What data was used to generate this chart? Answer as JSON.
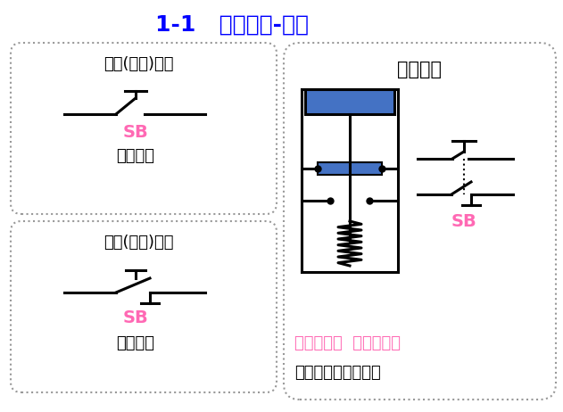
{
  "title": "1-1   控制器件-按钮",
  "title_color": "#0000FF",
  "title_fontsize": 18,
  "bg_color": "#FFFFFF",
  "box_border_color": "#999999",
  "black": "#000000",
  "pink": "#FF69B4",
  "blue_rect": "#4472C4",
  "lw": 2.2,
  "box1_title": "常开(动合)按钮",
  "box2_title": "常闭(动断)按钮",
  "box3_title": "复合按钮",
  "sb_label": "SB",
  "circuit_label": "电路符号",
  "compound_desc1": "复合按钮：  常开按钮和",
  "compound_desc2": "常闭按钮做在一起。"
}
